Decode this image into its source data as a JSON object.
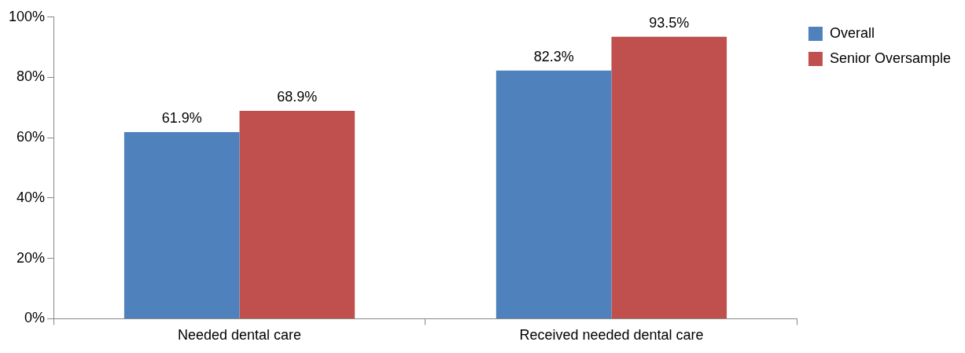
{
  "chart_data": {
    "type": "bar",
    "categories": [
      "Needed dental care",
      "Received needed dental care"
    ],
    "series": [
      {
        "name": "Overall",
        "color": "#4f81bd",
        "values": [
          61.9,
          82.3
        ],
        "value_labels": [
          "61.9%",
          "82.3%"
        ]
      },
      {
        "name": "Senior Oversample",
        "color": "#c0504d",
        "values": [
          68.9,
          93.5
        ],
        "value_labels": [
          "68.9%",
          "93.5%"
        ]
      }
    ],
    "ylim": [
      0,
      100
    ],
    "yticks": [
      {
        "value": 0,
        "label": "0%"
      },
      {
        "value": 20,
        "label": "20%"
      },
      {
        "value": 40,
        "label": "40%"
      },
      {
        "value": 60,
        "label": "60%"
      },
      {
        "value": 80,
        "label": "80%"
      },
      {
        "value": 100,
        "label": "100%"
      }
    ],
    "legend": "top right"
  }
}
